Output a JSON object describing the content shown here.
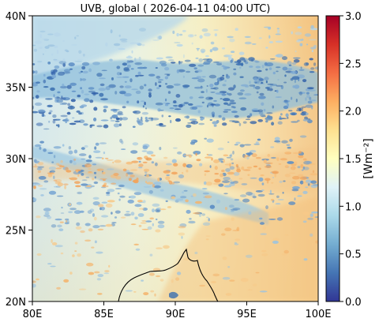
{
  "title": "UVB, global ( 2026-04-11 04:00 UTC)",
  "map": {
    "x_ticks": [
      "80E",
      "85E",
      "90E",
      "95E",
      "100E"
    ],
    "y_ticks": [
      "40N",
      "35N",
      "30N",
      "25N",
      "20N"
    ],
    "lon_range": [
      80,
      100
    ],
    "lat_range": [
      20,
      40
    ]
  },
  "colorbar": {
    "label": "[Wm⁻²]",
    "ticks": [
      "0.0",
      "0.5",
      "1.0",
      "1.5",
      "2.0",
      "2.5",
      "3.0"
    ],
    "range": [
      0.0,
      3.0
    ],
    "colormap": "RdYlBu_r",
    "stops": [
      "#313695",
      "#4575b4",
      "#74add1",
      "#abd9e9",
      "#e0f3f8",
      "#ffffbf",
      "#fee090",
      "#fdae61",
      "#f46d43",
      "#d73027",
      "#a50026"
    ]
  },
  "colors": {
    "low_cloud": "#3b6fb0",
    "mid_blue": "#8ab8d8",
    "pale_blue": "#cfe6ef",
    "pale_yellow": "#f3efc8",
    "light_orange": "#f5c98a",
    "orange": "#f2ad66"
  }
}
